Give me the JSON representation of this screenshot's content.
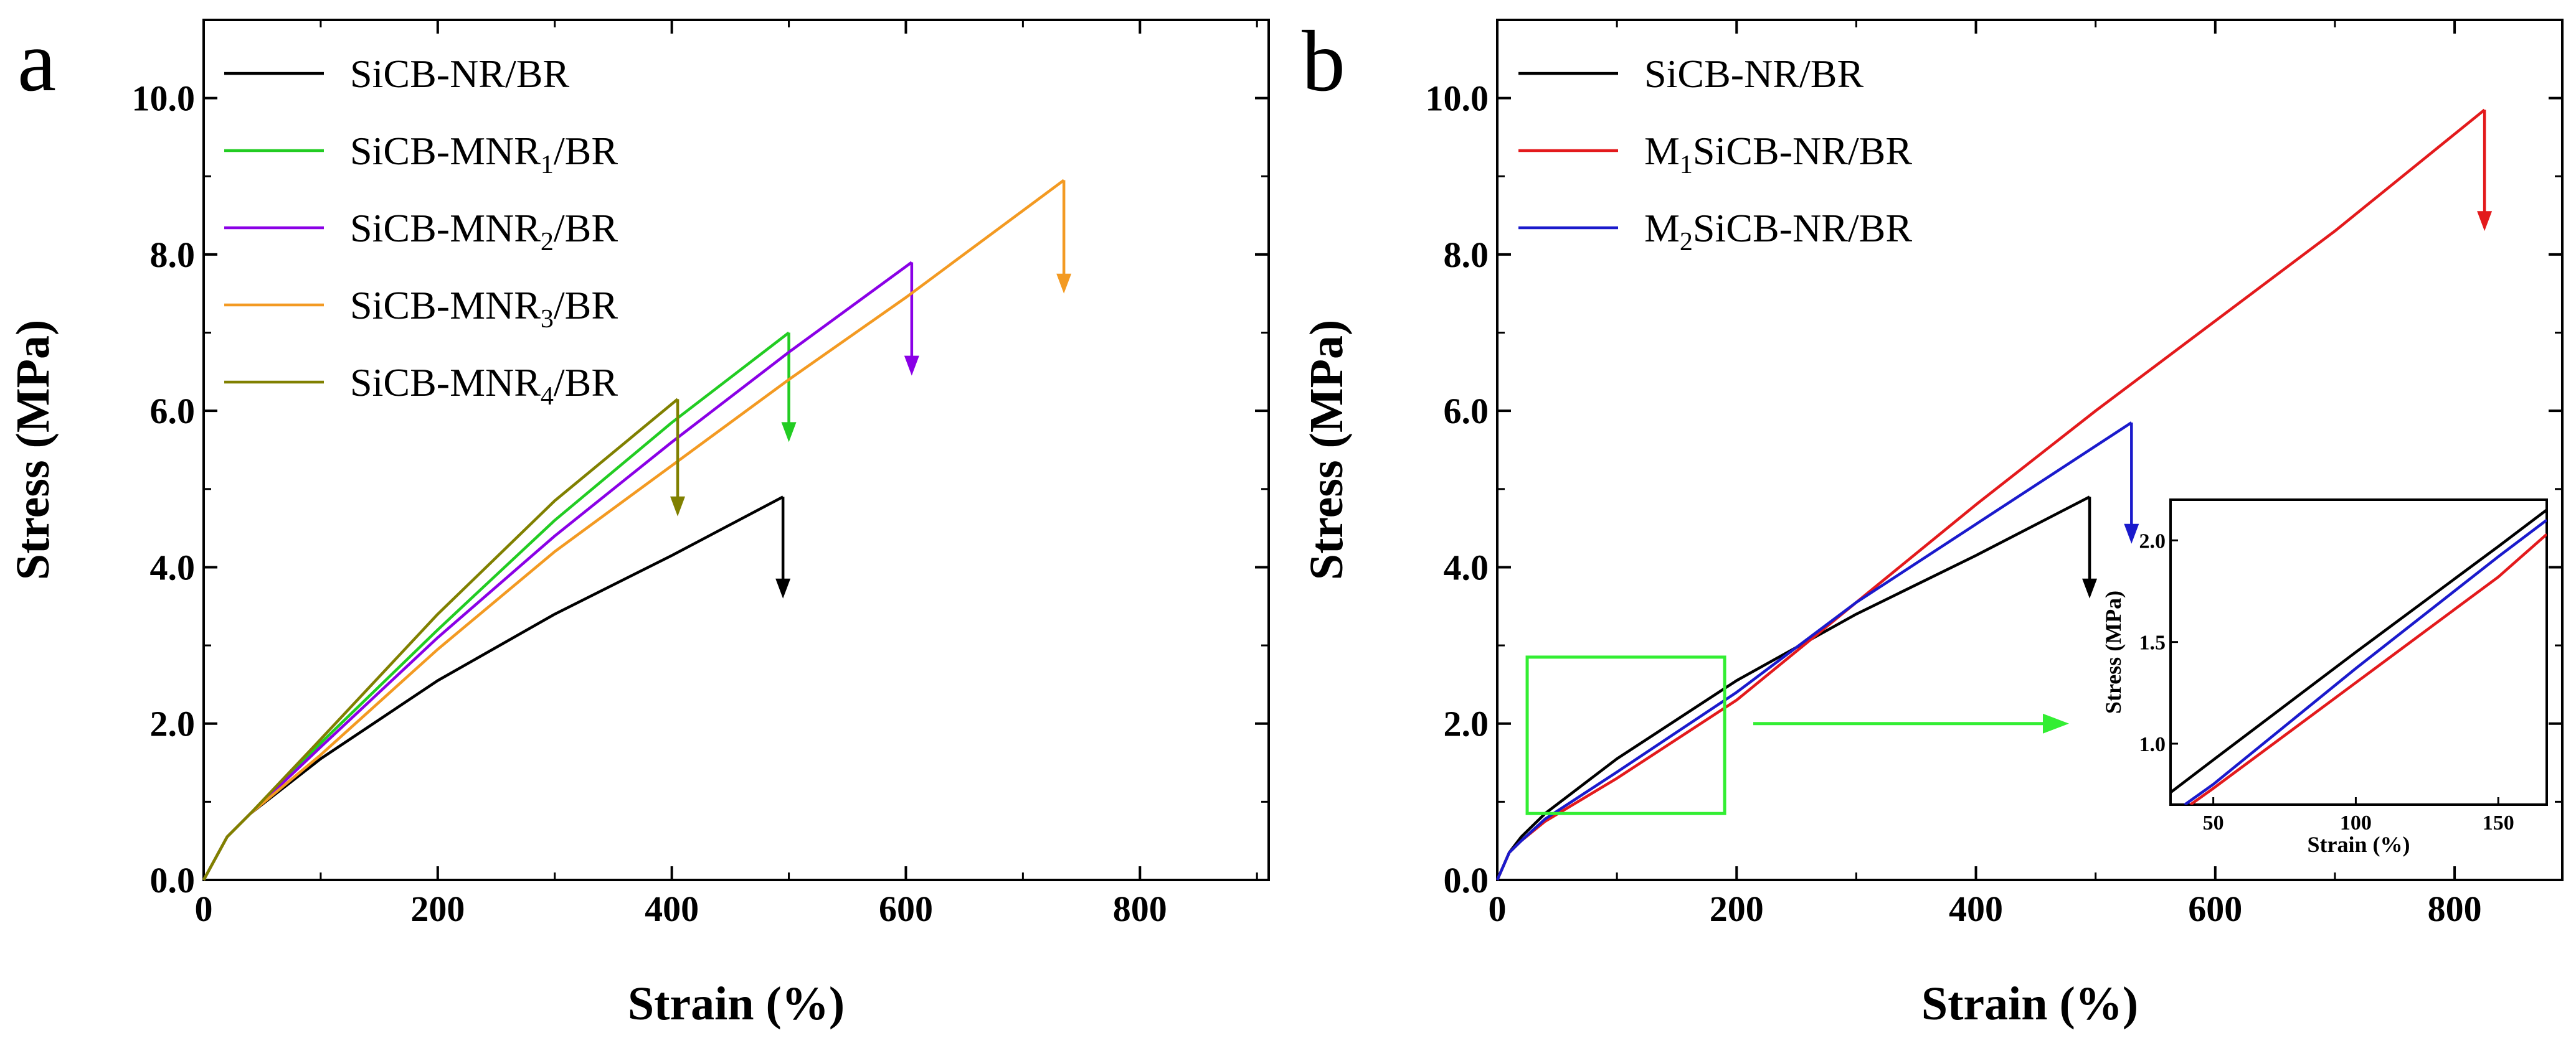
{
  "chart_data": [
    {
      "type": "line",
      "panel_label": "a",
      "xlabel": "Strain (%)",
      "ylabel": "Stress (MPa)",
      "xlim": [
        0,
        910
      ],
      "ylim": [
        0,
        11
      ],
      "xticks": [
        0,
        200,
        400,
        600,
        800
      ],
      "xtick_labels": [
        "0",
        "200",
        "400",
        "600",
        "800"
      ],
      "yticks": [
        0,
        2,
        4,
        6,
        8,
        10
      ],
      "ytick_labels": [
        "0.0",
        "2.0",
        "4.0",
        "6.0",
        "8.0",
        "10.0"
      ],
      "legend_position": "top-left",
      "series": [
        {
          "name": "SiCB-NR/BR",
          "name_main": "SiCB-NR/BR",
          "name_sub": "",
          "name_tail": "",
          "color": "#000000",
          "x": [
            0,
            20,
            40,
            100,
            200,
            300,
            400,
            495
          ],
          "y": [
            0,
            0.55,
            0.85,
            1.55,
            2.55,
            3.4,
            4.15,
            4.9
          ],
          "break_arrow_to": 3.6
        },
        {
          "name": "SiCB-MNR1/BR",
          "name_main": "SiCB-MNR",
          "name_sub": "1",
          "name_tail": "/BR",
          "color": "#22cc22",
          "x": [
            0,
            20,
            40,
            100,
            200,
            300,
            400,
            500
          ],
          "y": [
            0,
            0.55,
            0.85,
            1.75,
            3.2,
            4.6,
            5.85,
            7.0
          ],
          "break_arrow_to": 5.6
        },
        {
          "name": "SiCB-MNR2/BR",
          "name_main": "SiCB-MNR",
          "name_sub": "2",
          "name_tail": "/BR",
          "color": "#8a00e6",
          "x": [
            0,
            20,
            40,
            100,
            200,
            300,
            400,
            500,
            605
          ],
          "y": [
            0,
            0.55,
            0.85,
            1.7,
            3.1,
            4.4,
            5.6,
            6.75,
            7.9
          ],
          "break_arrow_to": 6.45
        },
        {
          "name": "SiCB-MNR3/BR",
          "name_main": "SiCB-MNR",
          "name_sub": "3",
          "name_tail": "/BR",
          "color": "#f39a22",
          "x": [
            0,
            20,
            40,
            100,
            200,
            300,
            400,
            500,
            600,
            735
          ],
          "y": [
            0,
            0.55,
            0.85,
            1.6,
            2.95,
            4.2,
            5.3,
            6.4,
            7.45,
            8.95
          ],
          "break_arrow_to": 7.5
        },
        {
          "name": "SiCB-MNR4/BR",
          "name_main": "SiCB-MNR",
          "name_sub": "4",
          "name_tail": "/BR",
          "color": "#808000",
          "x": [
            0,
            20,
            40,
            100,
            200,
            300,
            405
          ],
          "y": [
            0,
            0.55,
            0.85,
            1.8,
            3.4,
            4.85,
            6.15
          ],
          "break_arrow_to": 4.65
        }
      ]
    },
    {
      "type": "line",
      "panel_label": "b",
      "xlabel": "Strain (%)",
      "ylabel": "Stress (MPa)",
      "xlim": [
        0,
        890
      ],
      "ylim": [
        0,
        11
      ],
      "xticks": [
        0,
        200,
        400,
        600,
        800
      ],
      "xtick_labels": [
        "0",
        "200",
        "400",
        "600",
        "800"
      ],
      "yticks": [
        0,
        2,
        4,
        6,
        8,
        10
      ],
      "ytick_labels": [
        "0.0",
        "2.0",
        "4.0",
        "6.0",
        "8.0",
        "10.0"
      ],
      "legend_position": "top-left",
      "zoom_box": {
        "x": [
          25,
          190
        ],
        "y": [
          0.85,
          2.85
        ]
      },
      "series": [
        {
          "name": "SiCB-NR/BR",
          "name_pre": "",
          "name_sub": "",
          "name_main": "SiCB-NR/BR",
          "color": "#000000",
          "x": [
            0,
            10,
            20,
            40,
            100,
            200,
            300,
            400,
            495
          ],
          "y": [
            0,
            0.35,
            0.55,
            0.85,
            1.55,
            2.55,
            3.4,
            4.15,
            4.9
          ],
          "break_arrow_to": 3.6
        },
        {
          "name": "M1SiCB-NR/BR",
          "name_pre": "M",
          "name_sub": "1",
          "name_main": "SiCB-NR/BR",
          "color": "#e31a1c",
          "x": [
            0,
            10,
            20,
            40,
            100,
            200,
            300,
            400,
            500,
            600,
            700,
            825
          ],
          "y": [
            0,
            0.35,
            0.5,
            0.75,
            1.3,
            2.3,
            3.55,
            4.8,
            6.0,
            7.15,
            8.3,
            9.85
          ],
          "break_arrow_to": 8.3
        },
        {
          "name": "M2SiCB-NR/BR",
          "name_pre": "M",
          "name_sub": "2",
          "name_main": "SiCB-NR/BR",
          "color": "#1a1acc",
          "x": [
            0,
            10,
            20,
            40,
            100,
            200,
            300,
            400,
            530
          ],
          "y": [
            0,
            0.35,
            0.5,
            0.78,
            1.38,
            2.4,
            3.55,
            4.55,
            5.85
          ],
          "break_arrow_to": 4.3
        }
      ],
      "inset": {
        "xlabel": "Strain (%)",
        "ylabel": "Stress (MPa)",
        "xlim": [
          35,
          167
        ],
        "ylim": [
          0.7,
          2.2
        ],
        "xticks": [
          50,
          100,
          150
        ],
        "xtick_labels": [
          "50",
          "100",
          "150"
        ],
        "yticks": [
          1.0,
          1.5,
          2.0
        ],
        "ytick_labels": [
          "1.0",
          "1.5",
          "2.0"
        ],
        "series": [
          {
            "name": "SiCB-NR/BR",
            "color": "#000000",
            "x": [
              35,
              50,
              100,
              150,
              167
            ],
            "y": [
              0.76,
              0.92,
              1.45,
              1.97,
              2.15
            ]
          },
          {
            "name": "M1SiCB-NR/BR",
            "color": "#e31a1c",
            "x": [
              42,
              50,
              100,
              150,
              167
            ],
            "y": [
              0.7,
              0.78,
              1.3,
              1.82,
              2.03
            ]
          },
          {
            "name": "M2SiCB-NR/BR",
            "color": "#1a1acc",
            "x": [
              40,
              50,
              100,
              150,
              167
            ],
            "y": [
              0.7,
              0.8,
              1.37,
              1.92,
              2.1
            ]
          }
        ]
      }
    }
  ]
}
